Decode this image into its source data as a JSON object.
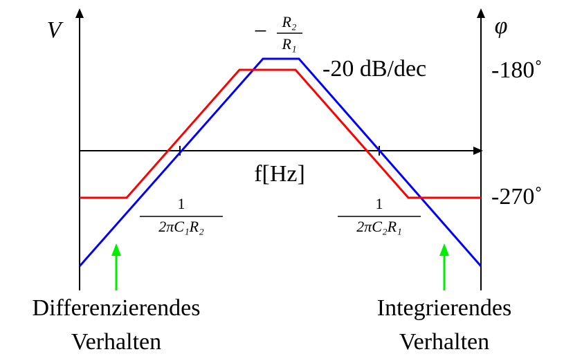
{
  "axes": {
    "left_label": "V",
    "right_label": "φ",
    "x_label": "f[Hz]",
    "right_ticks": [
      "-180˚",
      "-270˚"
    ]
  },
  "annotations": {
    "gain": {
      "sign": "−",
      "numerator": "R₂",
      "denominator": "R₁"
    },
    "slope": "-20  dB/dec",
    "corner_1": {
      "numerator": "1",
      "denominator": "2πC₁R₂"
    },
    "corner_2": {
      "numerator": "1",
      "denominator": "2πC₂R₁"
    }
  },
  "regions": [
    {
      "lines": [
        "Differenzierendes",
        "Verhalten"
      ]
    },
    {
      "lines": [
        "Integrierendes",
        "Verhalten"
      ]
    }
  ]
}
